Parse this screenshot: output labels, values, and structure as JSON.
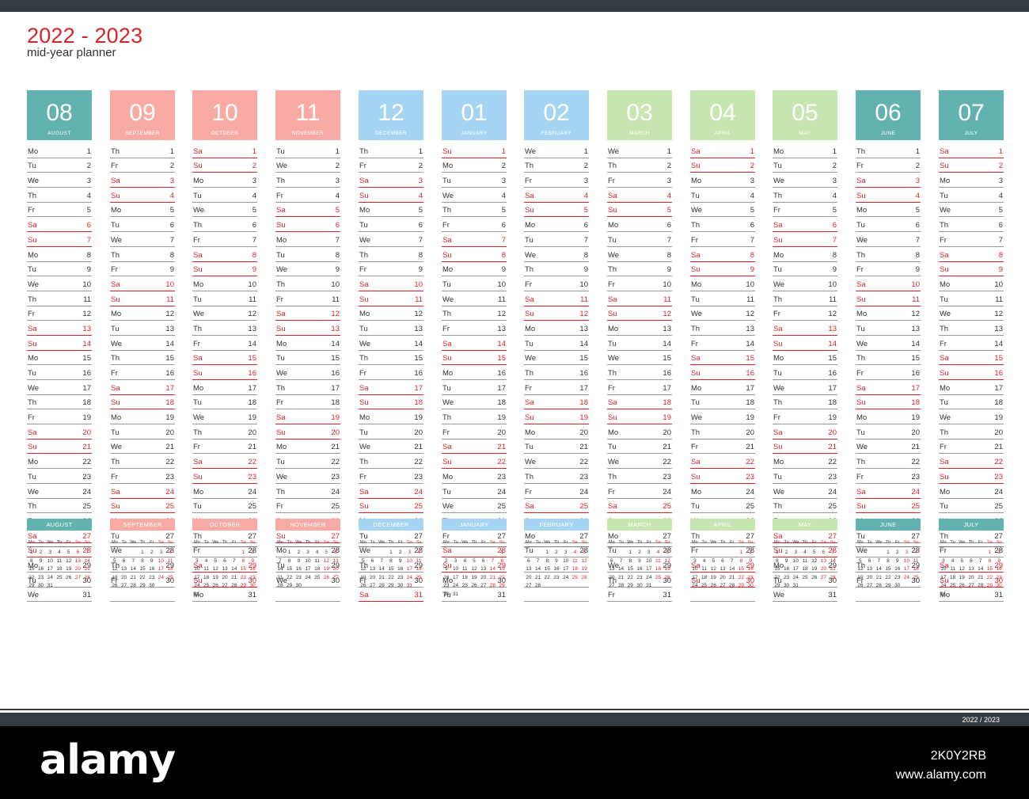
{
  "header": {
    "title": "2022 - 2023",
    "subtitle": "mid-year planner"
  },
  "colors": {
    "teal": "#62b2b0",
    "salmon": "#f8aaa4",
    "blue": "#a5d5f2",
    "green": "#c8e6b2",
    "weekend": "#d8232a",
    "bar": "#353c42"
  },
  "day_names": [
    "Mo",
    "Tu",
    "We",
    "Th",
    "Fr",
    "Sa",
    "Su"
  ],
  "months": [
    {
      "num": "08",
      "name": "AUGUST",
      "color": "teal",
      "start": 0,
      "days": 31
    },
    {
      "num": "09",
      "name": "SEPTEMBER",
      "color": "salmon",
      "start": 3,
      "days": 30
    },
    {
      "num": "10",
      "name": "OCTOBER",
      "color": "salmon",
      "start": 5,
      "days": 31
    },
    {
      "num": "11",
      "name": "NOVEMBER",
      "color": "salmon",
      "start": 1,
      "days": 30
    },
    {
      "num": "12",
      "name": "DECEMBER",
      "color": "blue",
      "start": 3,
      "days": 31
    },
    {
      "num": "01",
      "name": "JANUARY",
      "color": "blue",
      "start": 6,
      "days": 31
    },
    {
      "num": "02",
      "name": "FEBRUARY",
      "color": "blue",
      "start": 2,
      "days": 28
    },
    {
      "num": "03",
      "name": "MARCH",
      "color": "green",
      "start": 2,
      "days": 31
    },
    {
      "num": "04",
      "name": "APRIL",
      "color": "green",
      "start": 5,
      "days": 30
    },
    {
      "num": "05",
      "name": "MAY",
      "color": "green",
      "start": 0,
      "days": 31
    },
    {
      "num": "06",
      "name": "JUNE",
      "color": "teal",
      "start": 3,
      "days": 30
    },
    {
      "num": "07",
      "name": "JULY",
      "color": "teal",
      "start": 5,
      "days": 31
    }
  ],
  "footer": {
    "label": "2022 / 2023"
  },
  "watermark": {
    "logo": "alamy",
    "image_id": "2K0Y2RB",
    "url": "www.alamy.com"
  }
}
